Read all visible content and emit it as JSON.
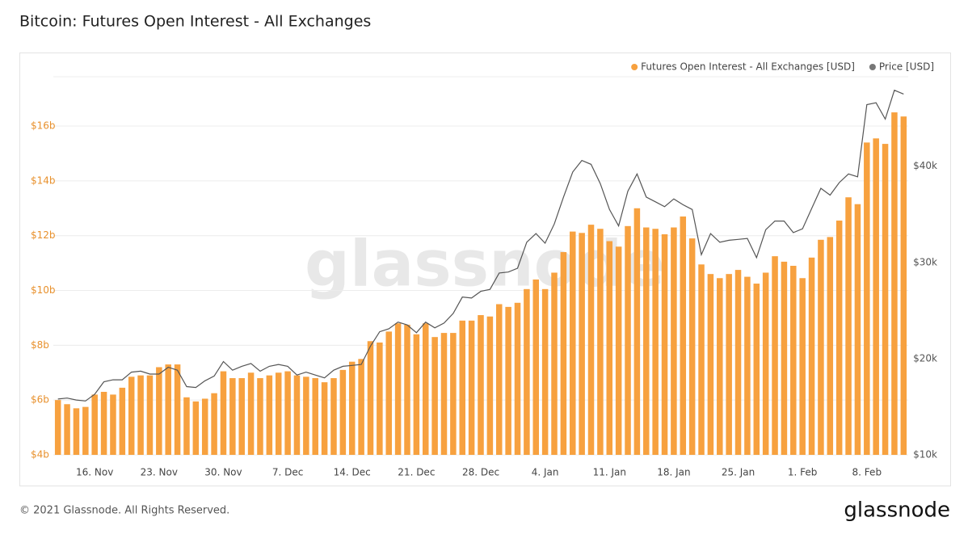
{
  "chart_data": {
    "type": "bar-line",
    "title": "Bitcoin: Futures Open Interest - All Exchanges",
    "watermark": "glassnode",
    "footer": "© 2021 Glassnode. All Rights Reserved.",
    "logo": "glassnode",
    "categories": [
      null,
      null,
      null,
      null,
      "16. Nov",
      null,
      null,
      null,
      null,
      null,
      null,
      "23. Nov",
      null,
      null,
      null,
      null,
      null,
      null,
      "30. Nov",
      null,
      null,
      null,
      null,
      null,
      null,
      "7. Dec",
      null,
      null,
      null,
      null,
      null,
      null,
      "14. Dec",
      null,
      null,
      null,
      null,
      null,
      null,
      "21. Dec",
      null,
      null,
      null,
      null,
      null,
      null,
      "28. Dec",
      null,
      null,
      null,
      null,
      null,
      null,
      "4. Jan",
      null,
      null,
      null,
      null,
      null,
      null,
      "11. Jan",
      null,
      null,
      null,
      null,
      null,
      null,
      "18. Jan",
      null,
      null,
      null,
      null,
      null,
      null,
      "25. Jan",
      null,
      null,
      null,
      null,
      null,
      null,
      "1. Feb",
      null,
      null,
      null,
      null,
      null,
      null,
      "8. Feb",
      null,
      null,
      null,
      null
    ],
    "series": [
      {
        "name": "Futures Open Interest - All Exchanges [USD]",
        "color": "#f7a13f",
        "legend_color": "#f7a13f",
        "values": [
          6.0,
          5.85,
          5.7,
          5.75,
          6.2,
          6.3,
          6.2,
          6.45,
          6.85,
          6.9,
          6.9,
          7.2,
          7.3,
          7.3,
          6.1,
          5.95,
          6.05,
          6.25,
          7.05,
          6.8,
          6.8,
          7.0,
          6.8,
          6.9,
          7.0,
          7.05,
          6.9,
          6.85,
          6.8,
          6.65,
          6.8,
          7.1,
          7.4,
          7.5,
          8.15,
          8.1,
          8.5,
          8.8,
          8.75,
          8.4,
          8.8,
          8.3,
          8.45,
          8.45,
          8.9,
          8.9,
          9.1,
          9.05,
          9.5,
          9.4,
          9.55,
          10.05,
          10.4,
          10.05,
          10.65,
          11.4,
          12.15,
          12.1,
          12.4,
          12.25,
          11.8,
          11.6,
          12.35,
          13.0,
          12.3,
          12.25,
          12.05,
          12.3,
          12.7,
          11.9,
          10.95,
          10.6,
          10.45,
          10.6,
          10.75,
          10.5,
          10.25,
          10.65,
          11.25,
          11.05,
          10.9,
          10.45,
          11.2,
          11.85,
          11.95,
          12.55,
          13.4,
          13.15,
          15.4,
          15.55,
          15.35,
          16.5,
          16.35
        ]
      },
      {
        "name": "Price [USD]",
        "color": "#555555",
        "legend_color": "#777777",
        "axis": "y2",
        "values": [
          15800,
          15900,
          15700,
          15600,
          16300,
          17600,
          17800,
          17800,
          18600,
          18700,
          18400,
          18400,
          19100,
          18800,
          17100,
          17000,
          17700,
          18200,
          19700,
          18800,
          19200,
          19500,
          18700,
          19200,
          19400,
          19200,
          18300,
          18600,
          18300,
          18000,
          18800,
          19200,
          19300,
          19400,
          21300,
          22800,
          23100,
          23800,
          23500,
          22700,
          23800,
          23200,
          23700,
          24700,
          26400,
          26300,
          27000,
          27200,
          28900,
          29000,
          29400,
          32100,
          33000,
          32000,
          34000,
          36800,
          39400,
          40600,
          40200,
          38200,
          35500,
          33800,
          37400,
          39200,
          36800,
          36300,
          35800,
          36600,
          36000,
          35500,
          30800,
          33000,
          32100,
          32300,
          32400,
          32500,
          30500,
          33400,
          34300,
          34300,
          33100,
          33500,
          35600,
          37700,
          37000,
          38300,
          39200,
          38900,
          46400,
          46600,
          44900,
          47900,
          47500
        ]
      }
    ],
    "ylim": [
      4,
      17.8
    ],
    "yticks": [
      {
        "value": 4,
        "label": "$4b"
      },
      {
        "value": 6,
        "label": "$6b"
      },
      {
        "value": 8,
        "label": "$8b"
      },
      {
        "value": 10,
        "label": "$10b"
      },
      {
        "value": 12,
        "label": "$12b"
      },
      {
        "value": 14,
        "label": "$14b"
      },
      {
        "value": 16,
        "label": "$16b"
      }
    ],
    "y2lim": [
      10000,
      49300
    ],
    "y2ticks": [
      {
        "value": 10000,
        "label": "$10k"
      },
      {
        "value": 20000,
        "label": "$20k"
      },
      {
        "value": 30000,
        "label": "$30k"
      },
      {
        "value": 40000,
        "label": "$40k"
      }
    ],
    "grid": true,
    "legend": "top-right"
  }
}
